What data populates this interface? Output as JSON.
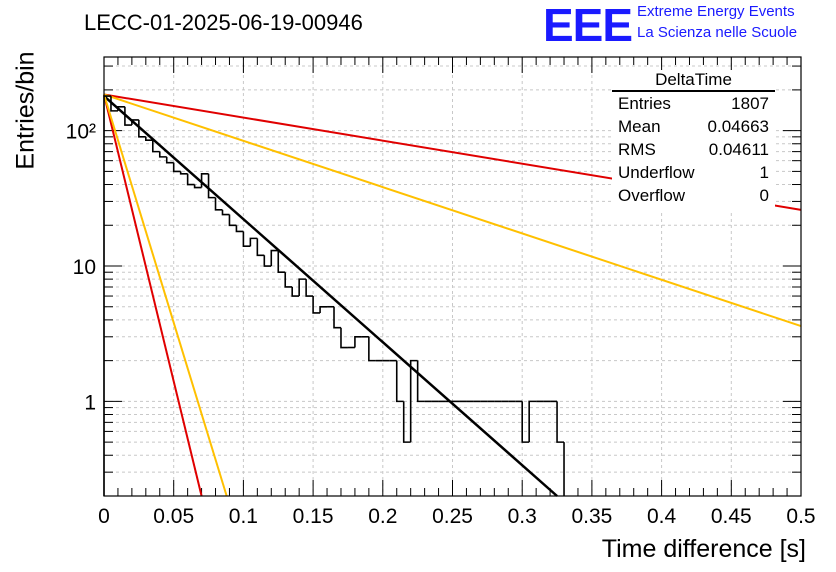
{
  "header": {
    "title": "LECC-01-2025-06-19-00946",
    "logo_text": "EEE",
    "logo_line1": "Extreme Energy Events",
    "logo_line2": "La Scienza nelle Scuole"
  },
  "stats": {
    "title": "DeltaTime",
    "rows": [
      {
        "label": "Entries",
        "value": "1807"
      },
      {
        "label": "Mean",
        "value": "0.04663"
      },
      {
        "label": "RMS",
        "value": "0.04611"
      },
      {
        "label": "Underflow",
        "value": "1"
      },
      {
        "label": "Overflow",
        "value": "0"
      }
    ]
  },
  "colors": {
    "histogram": "#000000",
    "fit": "#000000",
    "red": "#e00000",
    "yellow": "#ffc000",
    "grid": "#c8c8c8"
  },
  "chart_data": {
    "type": "line",
    "title": "LECC-01-2025-06-19-00946",
    "xlabel": "Time difference [s]",
    "ylabel": "Entries/bin",
    "xlim": [
      0,
      0.5
    ],
    "ylim": [
      0.2,
      350
    ],
    "yscale": "log",
    "grid": true,
    "x_ticks": [
      "0",
      "0.05",
      "0.1",
      "0.15",
      "0.2",
      "0.25",
      "0.3",
      "0.35",
      "0.4",
      "0.45",
      "0.5"
    ],
    "y_ticks": [
      {
        "v": 1,
        "label": "1"
      },
      {
        "v": 10,
        "label": "10"
      },
      {
        "v": 100,
        "label": "10²"
      }
    ],
    "histogram": {
      "name": "DeltaTime",
      "bin_width": 0.005,
      "values": [
        180,
        140,
        150,
        110,
        120,
        90,
        85,
        70,
        64,
        58,
        50,
        48,
        40,
        38,
        48,
        32,
        26,
        24,
        20,
        18,
        14,
        16,
        12,
        10,
        13,
        9,
        7,
        6,
        8,
        6,
        4.5,
        5,
        5,
        3.5,
        2.5,
        2.5,
        3,
        3,
        2,
        2,
        2,
        2,
        1,
        0.5,
        2,
        1,
        1,
        1,
        1,
        1,
        1,
        1,
        1,
        1,
        1,
        1,
        1,
        1,
        1,
        1,
        0.5,
        1,
        1,
        1,
        1,
        0.5
      ]
    },
    "series": [
      {
        "x": [
          0,
          0.325
        ],
        "y": [
          180,
          0.2
        ]
      },
      {
        "x": [
          0,
          0.5
        ],
        "y": [
          185,
          26
        ]
      },
      {
        "x": [
          0,
          0.5
        ],
        "y": [
          185,
          3.6
        ]
      },
      {
        "x": [
          0,
          0.07
        ],
        "y": [
          185,
          0.2
        ]
      },
      {
        "x": [
          0,
          0.088
        ],
        "y": [
          185,
          0.2
        ]
      }
    ]
  }
}
